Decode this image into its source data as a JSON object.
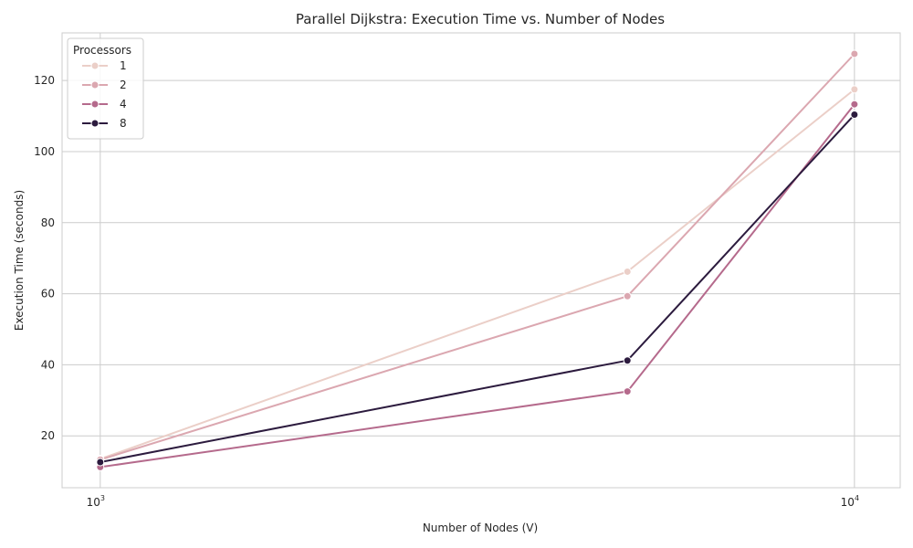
{
  "chart_data": {
    "type": "line",
    "title": "Parallel Dijkstra: Execution Time vs. Number of Nodes",
    "xlabel": "Number of Nodes (V)",
    "ylabel": "Execution Time (seconds)",
    "x_scale": "log",
    "x": [
      1000,
      5000,
      10000
    ],
    "x_ticks": [
      {
        "value": 1000,
        "base": "10",
        "exp": "3"
      },
      {
        "value": 10000,
        "base": "10",
        "exp": "4"
      }
    ],
    "y_ticks": [
      20,
      40,
      60,
      80,
      100,
      120
    ],
    "xlim": [
      890,
      11500
    ],
    "ylim": [
      5.4,
      133.4
    ],
    "grid": true,
    "legend": {
      "title": "Processors",
      "position": "top-left"
    },
    "series": [
      {
        "name": "1",
        "color": "#ebcfc8",
        "values": [
          13.5,
          66.2,
          117.5
        ]
      },
      {
        "name": "2",
        "color": "#dba7b0",
        "values": [
          13.3,
          59.3,
          127.5
        ]
      },
      {
        "name": "4",
        "color": "#b56a8c",
        "values": [
          11.2,
          32.5,
          113.3
        ]
      },
      {
        "name": "8",
        "color": "#2c1b3e",
        "values": [
          12.6,
          41.2,
          110.4
        ]
      }
    ]
  }
}
